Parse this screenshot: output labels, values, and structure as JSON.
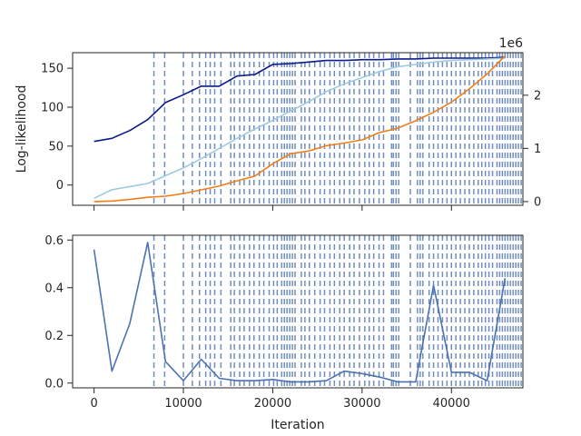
{
  "chart_data": [
    {
      "type": "line",
      "ylabel": "Log-likelihood",
      "xlabel": "",
      "xlim": [
        -2400,
        48000
      ],
      "ylim": [
        -26,
        170
      ],
      "xticks": [
        0,
        10000,
        20000,
        30000,
        40000
      ],
      "yticks": [
        0,
        50,
        100,
        150
      ],
      "ytick_labels": [
        "0",
        "50",
        "100",
        "150"
      ],
      "y2lim": [
        -0.07,
        2.8
      ],
      "y2ticks": [
        0,
        1,
        2
      ],
      "y2tick_labels": [
        "0",
        "1",
        "2"
      ],
      "y2_offset_label": "1e6",
      "series": [
        {
          "axis": "left",
          "color": "#0b1a8c",
          "x": [
            0,
            2000,
            4000,
            6000,
            8000,
            10000,
            12000,
            14000,
            16000,
            18000,
            20000,
            22000,
            24000,
            26000,
            28000,
            30000,
            32000,
            34000,
            36000,
            38000,
            40000,
            42000,
            44000,
            46000
          ],
          "y": [
            56,
            60,
            70,
            84,
            106,
            116,
            127,
            127,
            140,
            142,
            155,
            156,
            158,
            160,
            160,
            161,
            161,
            162,
            162,
            163,
            163,
            163,
            163,
            164
          ]
        },
        {
          "axis": "left",
          "color": "#9ecae1",
          "x": [
            0,
            2000,
            4000,
            6000,
            8000,
            10000,
            12000,
            14000,
            16000,
            18000,
            20000,
            22000,
            24000,
            26000,
            28000,
            30000,
            32000,
            34000,
            36000,
            38000,
            40000,
            42000,
            44000,
            46000
          ],
          "y": [
            -17,
            -6,
            -2,
            2,
            12,
            22,
            34,
            47,
            60,
            72,
            83,
            95,
            107,
            120,
            130,
            138,
            146,
            152,
            155,
            158,
            160,
            161,
            162,
            163
          ]
        },
        {
          "axis": "right",
          "color": "#f07f1b",
          "x": [
            0,
            2000,
            4000,
            6000,
            8000,
            10000,
            12000,
            14000,
            16000,
            18000,
            20000,
            22000,
            24000,
            26000,
            28000,
            30000,
            32000,
            34000,
            36000,
            38000,
            40000,
            42000,
            44000,
            46000
          ],
          "y": [
            0.0,
            0.01,
            0.04,
            0.08,
            0.1,
            0.15,
            0.22,
            0.29,
            0.39,
            0.48,
            0.71,
            0.9,
            0.95,
            1.05,
            1.1,
            1.16,
            1.3,
            1.38,
            1.52,
            1.68,
            1.87,
            2.12,
            2.4,
            2.74
          ]
        }
      ]
    },
    {
      "type": "line",
      "ylabel": "",
      "xlabel": "Iteration",
      "xlim": [
        -2400,
        48000
      ],
      "ylim": [
        -0.02,
        0.62
      ],
      "xticks": [
        0,
        10000,
        20000,
        30000,
        40000
      ],
      "xtick_labels": [
        "0",
        "10000",
        "20000",
        "30000",
        "40000"
      ],
      "yticks": [
        0,
        0.2,
        0.4,
        0.6
      ],
      "ytick_labels": [
        "0.0",
        "0.2",
        "0.4",
        "0.6"
      ],
      "series": [
        {
          "color": "#4c72b0",
          "x": [
            0,
            2000,
            4000,
            6000,
            8000,
            10000,
            12000,
            14000,
            16000,
            18000,
            20000,
            22000,
            24000,
            26000,
            28000,
            30000,
            32000,
            34000,
            36000,
            38000,
            40000,
            42000,
            44000,
            46000
          ],
          "y": [
            0.56,
            0.05,
            0.25,
            0.59,
            0.09,
            0.01,
            0.1,
            0.02,
            0.01,
            0.01,
            0.015,
            0.005,
            0.005,
            0.01,
            0.05,
            0.04,
            0.025,
            0.005,
            0.005,
            0.41,
            0.045,
            0.045,
            0.01,
            0.44
          ]
        }
      ]
    }
  ],
  "vlines": [
    6700,
    7900,
    10000,
    11000,
    11800,
    12500,
    13000,
    13500,
    14200,
    15300,
    15700,
    16300,
    16800,
    17400,
    17900,
    18500,
    19000,
    19600,
    20100,
    20500,
    21000,
    21300,
    21600,
    21900,
    22200,
    22500,
    23200,
    23600,
    24100,
    24700,
    25300,
    25800,
    26400,
    26900,
    27500,
    28000,
    28600,
    29100,
    29700,
    30300,
    30800,
    31300,
    31900,
    32400,
    33300,
    33500,
    33800,
    34100,
    35400,
    36200,
    36500,
    36800,
    37500,
    38000,
    38500,
    39000,
    39500,
    40000,
    40500,
    41000,
    41500,
    42000,
    42500,
    43000,
    43400,
    43800,
    44200,
    44600,
    45100,
    45400,
    45700,
    46000,
    46300,
    46600,
    46900,
    47200,
    47500,
    47800
  ],
  "colors": {
    "vline": "#4c72b0",
    "axis": "#262626"
  }
}
